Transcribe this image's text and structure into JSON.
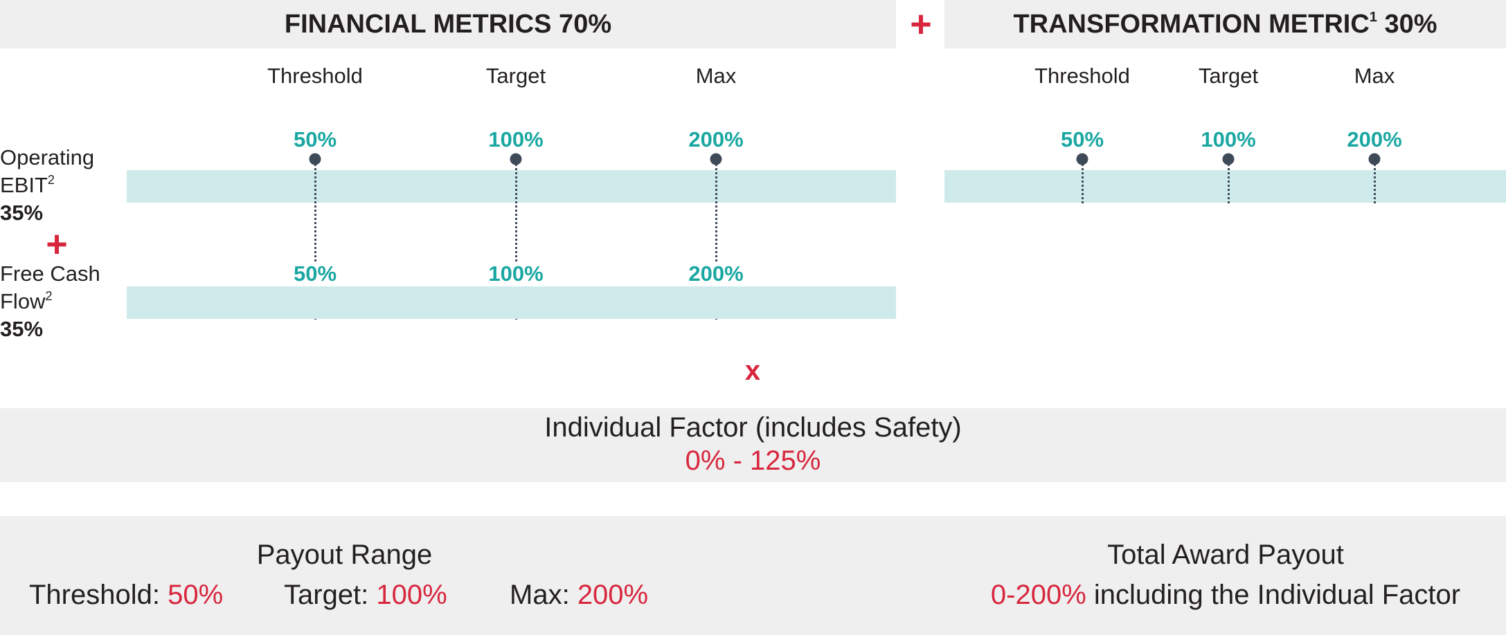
{
  "financial": {
    "title": "FINANCIAL METRICS 70%",
    "columns": [
      "Threshold",
      "Target",
      "Max"
    ],
    "metrics": [
      {
        "name_line1": "Operating",
        "name_line2": "EBIT",
        "footnote": "2",
        "weight": "35%",
        "points": [
          "50%",
          "100%",
          "200%"
        ]
      },
      {
        "name_line1": "Free Cash",
        "name_line2": "Flow",
        "footnote": "2",
        "weight": "35%",
        "points": [
          "50%",
          "100%",
          "200%"
        ]
      }
    ],
    "metric_joiner": "+"
  },
  "joiner_plus": "+",
  "transformation": {
    "title": "TRANSFORMATION METRIC",
    "footnote": "1",
    "weight": "30%",
    "columns": [
      "Threshold",
      "Target",
      "Max"
    ],
    "points": [
      "50%",
      "100%",
      "200%"
    ]
  },
  "multiplier": "x",
  "individual_factor": {
    "title": "Individual Factor (includes Safety)",
    "range": "0% - 125%"
  },
  "payout_range": {
    "title": "Payout Range",
    "items": [
      {
        "label": "Threshold:",
        "value": "50%"
      },
      {
        "label": "Target:",
        "value": "100%"
      },
      {
        "label": "Max:",
        "value": "200%"
      }
    ]
  },
  "total_award": {
    "title": "Total Award Payout",
    "value": "0-200%",
    "suffix": "including the Individual Factor"
  },
  "colors": {
    "accent_red": "#d7263d",
    "teal": "#1aa7a2",
    "band": "#cfeaea",
    "dot": "#3f4a59",
    "panel": "#efefef"
  }
}
